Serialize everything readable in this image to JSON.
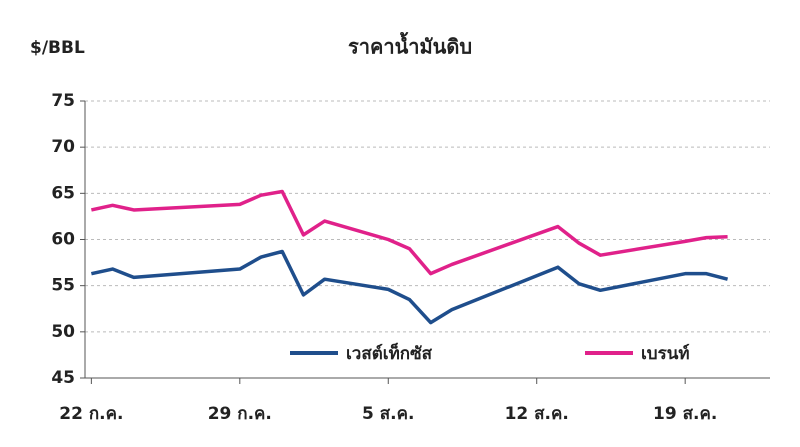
{
  "chart_data": {
    "type": "line",
    "title": "ราคาน้ำมันดิบ",
    "y_label": "$/BBL",
    "x": [
      0,
      1,
      2,
      7,
      8,
      9,
      10,
      11,
      14,
      15,
      16,
      17,
      22,
      23,
      24,
      28,
      29,
      30
    ],
    "xlim": [
      -0.3,
      32
    ],
    "xticks": [
      {
        "value": 0,
        "label": "22 ก.ค."
      },
      {
        "value": 7,
        "label": "29 ก.ค."
      },
      {
        "value": 14,
        "label": "5 ส.ค."
      },
      {
        "value": 21,
        "label": "12 ส.ค."
      },
      {
        "value": 28,
        "label": "19 ส.ค."
      }
    ],
    "ylim": [
      45,
      75
    ],
    "yticks": [
      45,
      50,
      55,
      60,
      65,
      70,
      75
    ],
    "grid": true,
    "series": [
      {
        "name": "เวสต์เท็กซัส",
        "color": "#1f4e8c",
        "values": [
          56.3,
          56.8,
          55.9,
          56.8,
          58.1,
          58.7,
          54.0,
          55.7,
          54.6,
          53.5,
          51.0,
          52.4,
          57.0,
          55.2,
          54.5,
          56.3,
          56.3,
          55.7
        ]
      },
      {
        "name": "เบรนท์",
        "color": "#e0218a",
        "values": [
          63.2,
          63.7,
          63.2,
          63.8,
          64.8,
          65.2,
          60.5,
          62.0,
          60.0,
          59.0,
          56.3,
          57.3,
          61.4,
          59.6,
          58.3,
          59.8,
          60.2,
          60.3
        ]
      }
    ]
  }
}
